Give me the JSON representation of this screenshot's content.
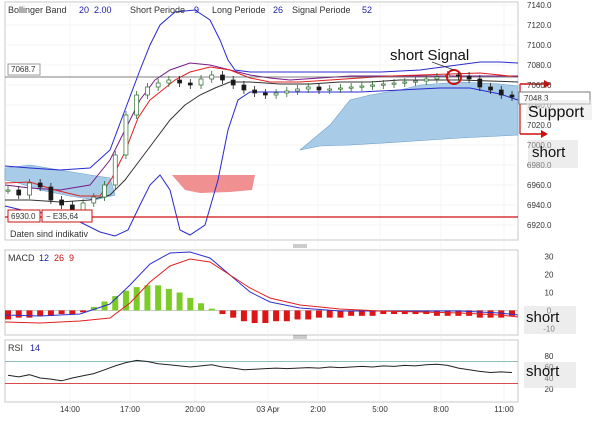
{
  "chart_data": [
    {
      "type": "candlestick",
      "panel": "price",
      "indicators": {
        "bollinger": {
          "label": "Bollinger Band",
          "p1": "20",
          "p2": "2.00"
        },
        "macd_lines": {
          "short_label": "Short Periode",
          "short_val": "9",
          "long_label": "Long Periode",
          "long_val": "26",
          "signal_label": "Signal Periode",
          "signal_val": "52"
        }
      },
      "ylim": [
        6910,
        7140
      ],
      "yticks": [
        "7140.0",
        "7120.0",
        "7100.0",
        "7080.0",
        "7060.0",
        "7040.0",
        "7020.0",
        "7000.0",
        "6980.0",
        "6960.0",
        "6940.0",
        "6920.0"
      ],
      "xticks": [
        "14:00",
        "17:00",
        "20:00",
        "03 Apr",
        "2:00",
        "5:00",
        "8:00",
        "11:00"
      ],
      "last_price": "7048.3",
      "reference_level": "7068.7",
      "low_label": "6930.0",
      "low_change": "− E35,64",
      "status_text": "Daten sind indikativ",
      "close": [
        6955,
        6950,
        6962,
        6958,
        6945,
        6940,
        6935,
        6942,
        6948,
        6960,
        6990,
        7030,
        7050,
        7058,
        7062,
        7065,
        7062,
        7060,
        7066,
        7070,
        7065,
        7060,
        7055,
        7052,
        7050,
        7052,
        7054,
        7056,
        7058,
        7055,
        7056,
        7057,
        7058,
        7059,
        7060,
        7061,
        7062,
        7063,
        7064,
        7066,
        7068,
        7070,
        7069,
        7066,
        7058,
        7055,
        7050,
        7048
      ]
    },
    {
      "type": "bar",
      "panel": "MACD",
      "label": "MACD",
      "params": [
        "12",
        "26",
        "9"
      ],
      "ylim": [
        -12,
        32
      ],
      "yticks": [
        "30",
        "20",
        "10",
        "0",
        "-10"
      ],
      "histogram": [
        -5,
        -4,
        -4,
        -3,
        -3,
        -2,
        -2,
        -1,
        2,
        5,
        8,
        11,
        13,
        14,
        14,
        12,
        10,
        7,
        4,
        1,
        -2,
        -4,
        -6,
        -7,
        -7,
        -6,
        -6,
        -5,
        -5,
        -4,
        -4,
        -4,
        -3,
        -3,
        -3,
        -2,
        -2,
        -2,
        -2,
        -2,
        -3,
        -3,
        -3,
        -3,
        -4,
        -4,
        -4,
        -3
      ]
    },
    {
      "type": "line",
      "panel": "RSI",
      "label": "RSI",
      "param": "14",
      "ylim": [
        0,
        100
      ],
      "yticks": [
        "80",
        "60",
        "40",
        "20"
      ],
      "levels": [
        70,
        30
      ],
      "values": [
        45,
        42,
        46,
        40,
        38,
        35,
        40,
        44,
        48,
        55,
        62,
        68,
        72,
        70,
        66,
        64,
        62,
        60,
        62,
        64,
        60,
        58,
        55,
        56,
        57,
        58,
        57,
        58,
        59,
        58,
        60,
        59,
        60,
        61,
        60,
        62,
        61,
        63,
        62,
        64,
        65,
        63,
        58,
        55,
        52,
        50,
        51,
        50
      ]
    }
  ],
  "annotations": {
    "short_signal": "short Signal",
    "support": "Support",
    "short_price": "short",
    "short_macd": "short",
    "short_rsi": "short"
  },
  "colors": {
    "upper_band": "#2828d0",
    "lower_band": "#2828d0",
    "mid_band": "#7a1a8a",
    "fast_ma": "#e02020",
    "slow_ma": "#333333",
    "cloud_bull": "#a8cce8",
    "cloud_bear": "#f09090",
    "candle_up": "#2a6a2a",
    "candle_down": "#1a1a1a",
    "macd_pos": "#7ccc28",
    "macd_neg": "#dd1515",
    "rsi_line": "#222222",
    "annotation_red": "#cc1010"
  }
}
